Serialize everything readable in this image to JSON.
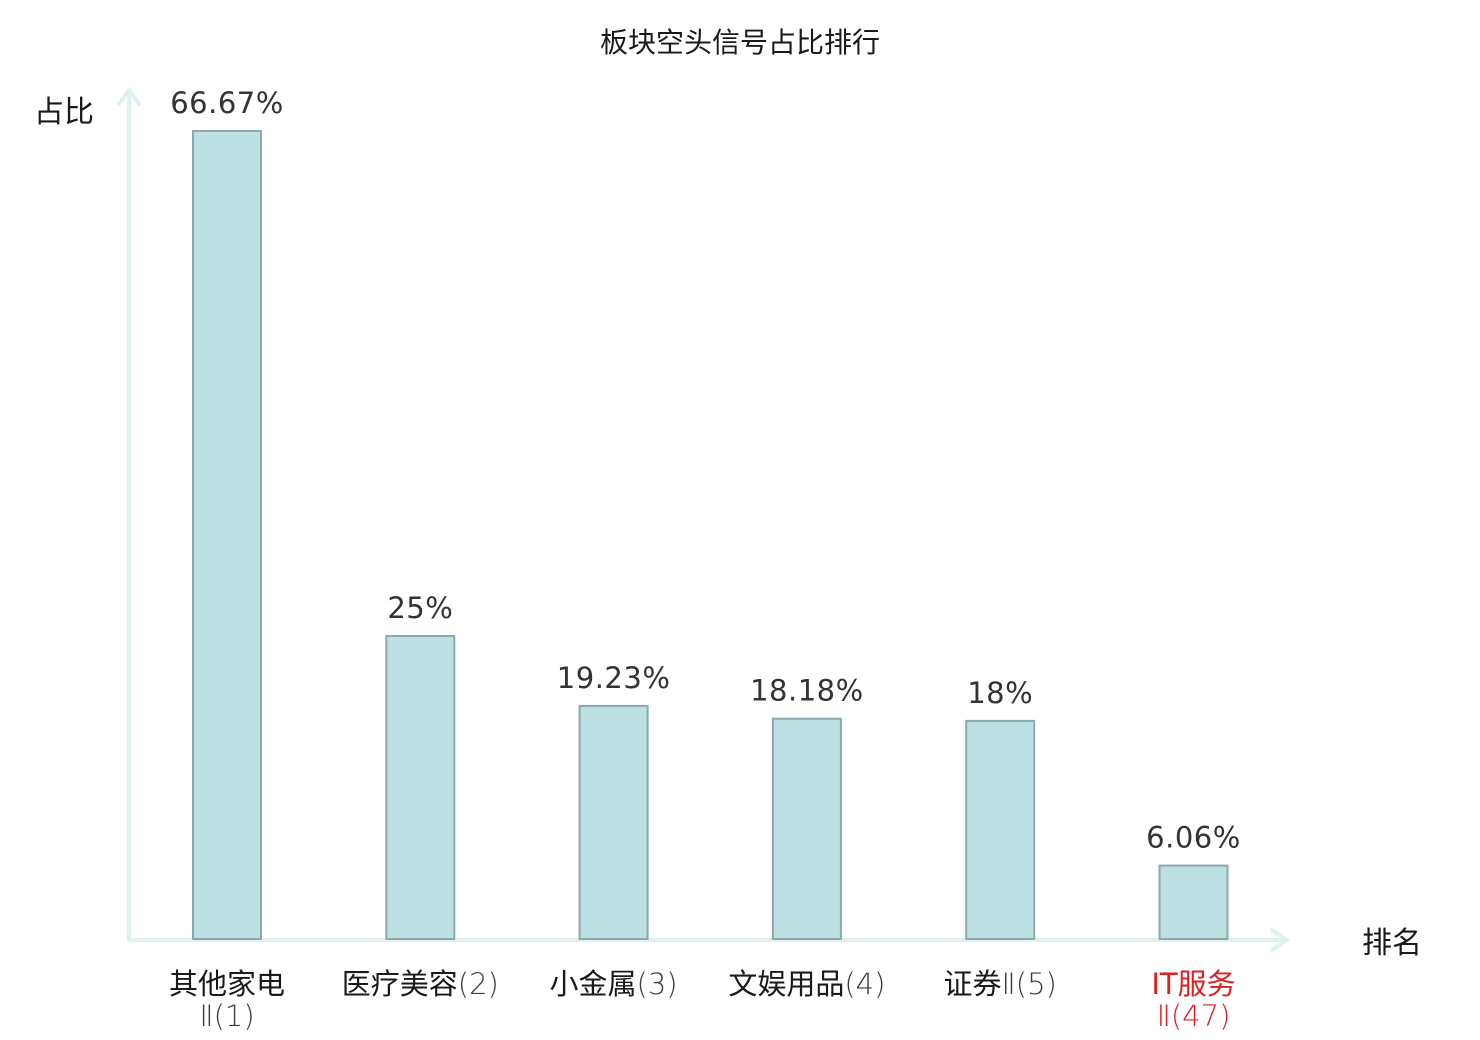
{
  "chart_data": {
    "type": "bar",
    "title": "板块空头信号占比排行",
    "xlabel": "排名",
    "ylabel": "占比",
    "categories": [
      {
        "name": "其他家电",
        "rank": "Ⅱ(1)"
      },
      {
        "name": "医疗美容",
        "rank": "(2)"
      },
      {
        "name": "小金属",
        "rank": "(3)"
      },
      {
        "name": "文娱用品",
        "rank": "(4)"
      },
      {
        "name": "证券",
        "rank": "Ⅱ(5)"
      },
      {
        "name": "IT服务",
        "rank": "Ⅱ(47)"
      }
    ],
    "values": [
      66.67,
      25,
      19.23,
      18.18,
      18,
      6.06
    ],
    "value_labels": [
      "66.67%",
      "25%",
      "19.23%",
      "18.18%",
      "18%",
      "6.06%"
    ],
    "highlighted_category_index": 5,
    "ylim": [
      0,
      66.67
    ],
    "grid": false,
    "legend": "none",
    "colors": {
      "bar_fill": "#bde0e2",
      "bar_stroke": "#8aaaae",
      "axis": "#e0f2ef",
      "category_text": "#1a1a1a",
      "highlight_text": "#e02020"
    }
  }
}
